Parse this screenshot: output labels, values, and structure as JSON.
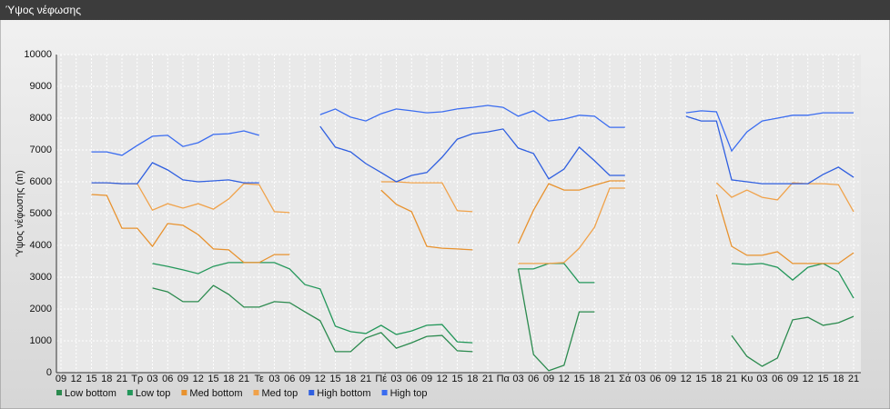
{
  "chart_data": {
    "type": "line",
    "title": "Ύψος νέφωσης",
    "y_label": "Ύψος νέφωσης (m)",
    "categories": [
      "09",
      "12",
      "15",
      "18",
      "21",
      "Τρ",
      "03",
      "06",
      "09",
      "12",
      "15",
      "18",
      "21",
      "Τε",
      "03",
      "06",
      "09",
      "12",
      "15",
      "18",
      "21",
      "Πέ",
      "03",
      "06",
      "09",
      "12",
      "15",
      "18",
      "21",
      "Πα",
      "03",
      "06",
      "09",
      "12",
      "15",
      "18",
      "21",
      "Σά",
      "03",
      "06",
      "09",
      "12",
      "15",
      "18",
      "21",
      "Κυ",
      "03",
      "06",
      "09",
      "12",
      "15",
      "18",
      "21"
    ],
    "series": [
      {
        "name": "Low bottom",
        "color": "#2b8a4e",
        "values": [
          null,
          null,
          null,
          null,
          null,
          null,
          2660,
          2540,
          2230,
          2230,
          2740,
          2460,
          2060,
          2060,
          2230,
          2200,
          1910,
          1630,
          660,
          660,
          1090,
          1260,
          770,
          940,
          1140,
          1170,
          690,
          660,
          null,
          null,
          3260,
          570,
          60,
          230,
          1910,
          1910,
          null,
          null,
          null,
          null,
          null,
          null,
          null,
          null,
          1170,
          510,
          200,
          460,
          1660,
          1740,
          1490,
          1570,
          1770
        ]
      },
      {
        "name": "Low top",
        "color": "#23975a",
        "values": [
          null,
          null,
          null,
          null,
          null,
          null,
          3430,
          3340,
          3230,
          3110,
          3340,
          3460,
          3460,
          3460,
          3460,
          3260,
          2770,
          2630,
          1460,
          1290,
          1230,
          1490,
          1200,
          1310,
          1490,
          1510,
          970,
          940,
          null,
          null,
          3260,
          3260,
          3430,
          3430,
          2830,
          2830,
          null,
          null,
          null,
          null,
          null,
          null,
          null,
          null,
          3430,
          3400,
          3430,
          3310,
          2910,
          3310,
          3430,
          3170,
          2340
        ]
      },
      {
        "name": "Med bottom",
        "color": "#e8922e",
        "values": [
          null,
          null,
          5600,
          5570,
          4540,
          4540,
          3970,
          4690,
          4630,
          4340,
          3890,
          3860,
          3460,
          3460,
          3710,
          3710,
          null,
          null,
          null,
          null,
          null,
          5740,
          5290,
          5060,
          3970,
          3910,
          3890,
          3860,
          null,
          null,
          4060,
          5110,
          5940,
          5740,
          5740,
          5890,
          6030,
          6030,
          null,
          null,
          null,
          null,
          null,
          5600,
          3970,
          3690,
          3690,
          3800,
          3430,
          3430,
          3430,
          3430,
          3770
        ]
      },
      {
        "name": "Med top",
        "color": "#f0a24a",
        "values": [
          null,
          null,
          5970,
          5970,
          5940,
          5940,
          5110,
          5310,
          5170,
          5310,
          5140,
          5460,
          5940,
          5910,
          5060,
          5030,
          null,
          null,
          null,
          null,
          null,
          6000,
          6000,
          5970,
          5970,
          5970,
          5090,
          5060,
          null,
          null,
          3430,
          3430,
          3430,
          3460,
          3910,
          4570,
          5800,
          5800,
          null,
          null,
          null,
          null,
          null,
          5970,
          5510,
          5740,
          5510,
          5430,
          5970,
          5940,
          5940,
          5910,
          5060
        ]
      },
      {
        "name": "High bottom",
        "color": "#2f5fe0",
        "values": [
          null,
          null,
          5970,
          5970,
          5940,
          5940,
          6600,
          6370,
          6060,
          6000,
          6030,
          6060,
          5970,
          5970,
          null,
          null,
          null,
          7740,
          7090,
          6940,
          6570,
          6290,
          6000,
          6200,
          6290,
          6770,
          7340,
          7510,
          7570,
          7660,
          7060,
          6890,
          6090,
          6400,
          7090,
          6660,
          6200,
          6200,
          null,
          null,
          null,
          8060,
          7910,
          7910,
          6060,
          6000,
          5940,
          5940,
          5940,
          5940,
          6230,
          6460,
          6140
        ]
      },
      {
        "name": "High top",
        "color": "#3a6cf0",
        "values": [
          null,
          null,
          6940,
          6940,
          6830,
          7140,
          7430,
          7460,
          7110,
          7230,
          7490,
          7510,
          7600,
          7460,
          null,
          null,
          null,
          8110,
          8290,
          8030,
          7910,
          8140,
          8290,
          8230,
          8170,
          8200,
          8290,
          8340,
          8400,
          8340,
          8060,
          8230,
          7910,
          7970,
          8090,
          8060,
          7710,
          7710,
          null,
          null,
          null,
          8170,
          8230,
          8200,
          6970,
          7570,
          7910,
          8000,
          8090,
          8090,
          8170,
          8170,
          8170
        ]
      }
    ],
    "ylim": [
      0,
      10000
    ],
    "yticks": [
      0,
      1000,
      2000,
      3000,
      4000,
      5000,
      6000,
      7000,
      8000,
      9000,
      10000
    ],
    "grid": true
  }
}
